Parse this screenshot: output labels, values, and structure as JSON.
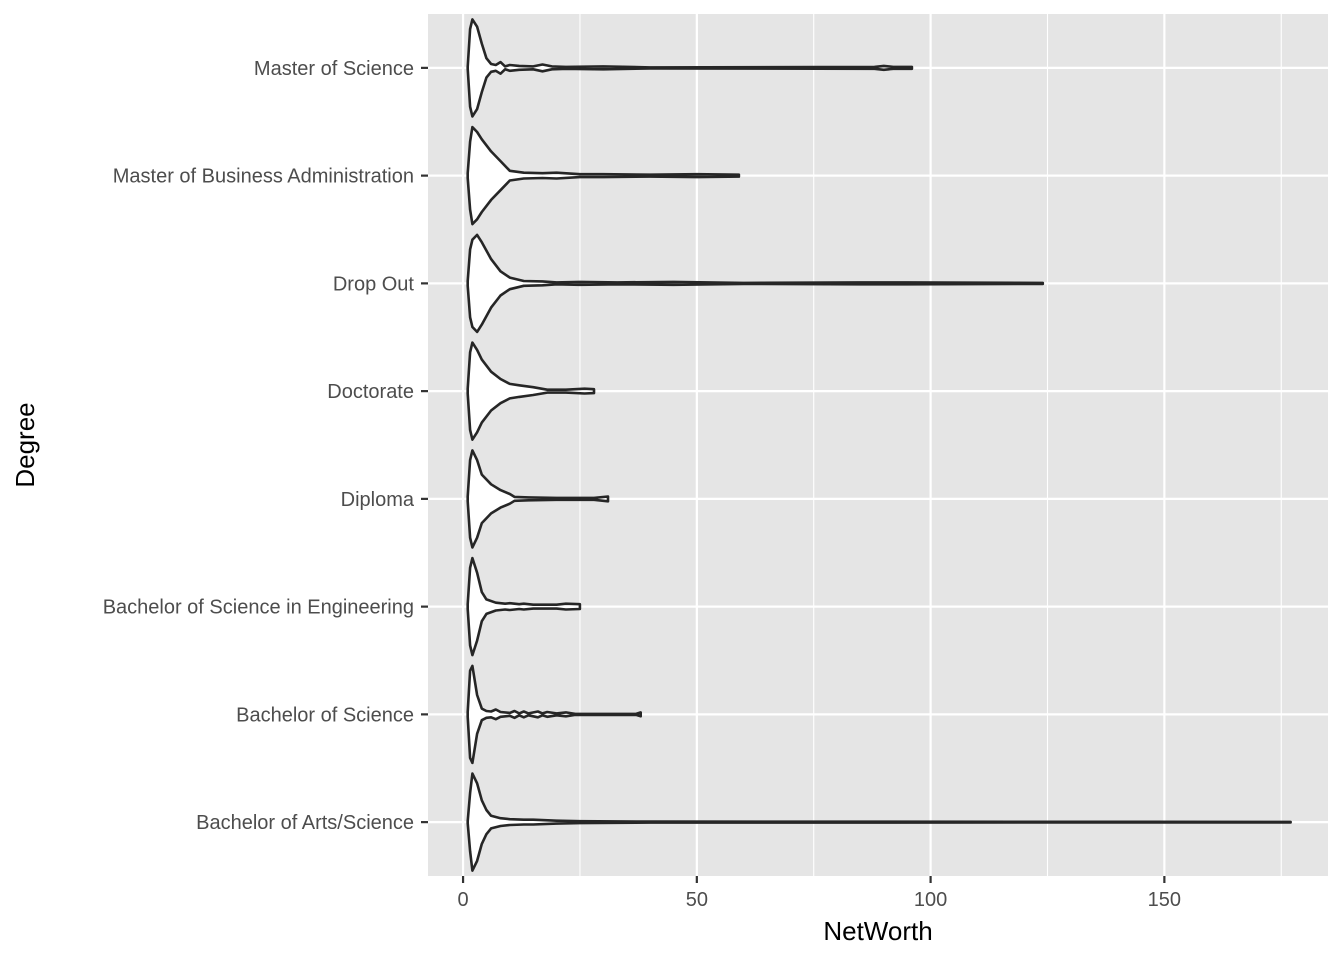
{
  "chart_data": {
    "type": "violin",
    "orientation": "horizontal",
    "title": "",
    "xlabel": "NetWorth",
    "ylabel": "Degree",
    "xlim": [
      -7.5,
      185
    ],
    "x_ticks": [
      0,
      50,
      100,
      150
    ],
    "x_minor_ticks": [
      25,
      75,
      125,
      175
    ],
    "grid": true,
    "legend": "none",
    "colors": {
      "panel": "#e5e5e5",
      "grid": "#ffffff",
      "violin_fill": "#ffffff",
      "violin_stroke": "#262626"
    },
    "categories": [
      "Bachelor of Arts/Science",
      "Bachelor of Science",
      "Bachelor of Science in Engineering",
      "Diploma",
      "Doctorate",
      "Drop Out",
      "Master of Business Administration",
      "Master of Science"
    ],
    "series": [
      {
        "category": "Bachelor of Arts/Science",
        "min": 1,
        "max": 177,
        "profile": [
          [
            1,
            0.02
          ],
          [
            1.5,
            0.6
          ],
          [
            2,
            1.0
          ],
          [
            3,
            0.8
          ],
          [
            4,
            0.45
          ],
          [
            5,
            0.25
          ],
          [
            6,
            0.13
          ],
          [
            8,
            0.08
          ],
          [
            10,
            0.06
          ],
          [
            13,
            0.05
          ],
          [
            15,
            0.05
          ],
          [
            20,
            0.03
          ],
          [
            25,
            0.02
          ],
          [
            40,
            0.01
          ],
          [
            177,
            0.005
          ]
        ]
      },
      {
        "category": "Bachelor of Science",
        "min": 1,
        "max": 38,
        "profile": [
          [
            1,
            0.05
          ],
          [
            1.5,
            0.9
          ],
          [
            2,
            1.0
          ],
          [
            3,
            0.4
          ],
          [
            4,
            0.12
          ],
          [
            5,
            0.07
          ],
          [
            6,
            0.06
          ],
          [
            7,
            0.1
          ],
          [
            8,
            0.05
          ],
          [
            10,
            0.03
          ],
          [
            11,
            0.07
          ],
          [
            12,
            0.02
          ],
          [
            13,
            0.06
          ],
          [
            14,
            0.02
          ],
          [
            16,
            0.06
          ],
          [
            17,
            0.02
          ],
          [
            18,
            0.05
          ],
          [
            20,
            0.02
          ],
          [
            22,
            0.04
          ],
          [
            24,
            0.01
          ],
          [
            37,
            0.01
          ],
          [
            38,
            0.04
          ]
        ]
      },
      {
        "category": "Bachelor of Science in Engineering",
        "min": 1,
        "max": 25,
        "profile": [
          [
            1,
            0.05
          ],
          [
            1.5,
            0.8
          ],
          [
            2,
            1.0
          ],
          [
            3,
            0.7
          ],
          [
            4,
            0.3
          ],
          [
            5,
            0.15
          ],
          [
            7,
            0.08
          ],
          [
            9,
            0.06
          ],
          [
            10,
            0.07
          ],
          [
            12,
            0.05
          ],
          [
            13,
            0.06
          ],
          [
            15,
            0.04
          ],
          [
            20,
            0.04
          ],
          [
            22,
            0.06
          ],
          [
            25,
            0.05
          ]
        ]
      },
      {
        "category": "Diploma",
        "min": 1,
        "max": 31,
        "profile": [
          [
            1,
            0.05
          ],
          [
            1.5,
            0.8
          ],
          [
            2,
            1.0
          ],
          [
            3,
            0.8
          ],
          [
            4,
            0.5
          ],
          [
            6,
            0.3
          ],
          [
            8,
            0.18
          ],
          [
            10,
            0.1
          ],
          [
            11,
            0.04
          ],
          [
            14,
            0.03
          ],
          [
            20,
            0.02
          ],
          [
            28,
            0.02
          ],
          [
            31,
            0.05
          ]
        ]
      },
      {
        "category": "Doctorate",
        "min": 1,
        "max": 28,
        "profile": [
          [
            1,
            0.05
          ],
          [
            1.5,
            0.8
          ],
          [
            2,
            1.0
          ],
          [
            3,
            0.85
          ],
          [
            4,
            0.65
          ],
          [
            6,
            0.4
          ],
          [
            8,
            0.25
          ],
          [
            10,
            0.15
          ],
          [
            12,
            0.12
          ],
          [
            15,
            0.08
          ],
          [
            18,
            0.03
          ],
          [
            22,
            0.03
          ],
          [
            26,
            0.05
          ],
          [
            28,
            0.04
          ]
        ]
      },
      {
        "category": "Drop Out",
        "min": 1,
        "max": 124,
        "profile": [
          [
            1,
            0.05
          ],
          [
            1.5,
            0.7
          ],
          [
            2,
            0.9
          ],
          [
            3,
            1.0
          ],
          [
            4,
            0.85
          ],
          [
            6,
            0.5
          ],
          [
            8,
            0.25
          ],
          [
            10,
            0.12
          ],
          [
            13,
            0.05
          ],
          [
            17,
            0.04
          ],
          [
            20,
            0.02
          ],
          [
            25,
            0.03
          ],
          [
            33,
            0.02
          ],
          [
            45,
            0.03
          ],
          [
            60,
            0.01
          ],
          [
            85,
            0.02
          ],
          [
            95,
            0.02
          ],
          [
            124,
            0.01
          ]
        ]
      },
      {
        "category": "Master of Business Administration",
        "min": 1,
        "max": 59,
        "profile": [
          [
            1,
            0.05
          ],
          [
            1.5,
            0.7
          ],
          [
            2,
            1.0
          ],
          [
            3,
            0.9
          ],
          [
            4,
            0.75
          ],
          [
            6,
            0.5
          ],
          [
            8,
            0.3
          ],
          [
            10,
            0.1
          ],
          [
            13,
            0.06
          ],
          [
            17,
            0.05
          ],
          [
            20,
            0.06
          ],
          [
            25,
            0.03
          ],
          [
            30,
            0.03
          ],
          [
            40,
            0.02
          ],
          [
            50,
            0.03
          ],
          [
            59,
            0.02
          ]
        ]
      },
      {
        "category": "Master of Science",
        "min": 1,
        "max": 96,
        "profile": [
          [
            1,
            0.02
          ],
          [
            1.5,
            0.8
          ],
          [
            2,
            1.0
          ],
          [
            3,
            0.85
          ],
          [
            4,
            0.5
          ],
          [
            5,
            0.2
          ],
          [
            6,
            0.08
          ],
          [
            7,
            0.06
          ],
          [
            8,
            0.12
          ],
          [
            9,
            0.03
          ],
          [
            10,
            0.06
          ],
          [
            12,
            0.04
          ],
          [
            15,
            0.03
          ],
          [
            17,
            0.07
          ],
          [
            19,
            0.03
          ],
          [
            22,
            0.02
          ],
          [
            30,
            0.03
          ],
          [
            40,
            0.01
          ],
          [
            88,
            0.02
          ],
          [
            90,
            0.04
          ],
          [
            92,
            0.02
          ],
          [
            96,
            0.02
          ]
        ]
      }
    ]
  }
}
